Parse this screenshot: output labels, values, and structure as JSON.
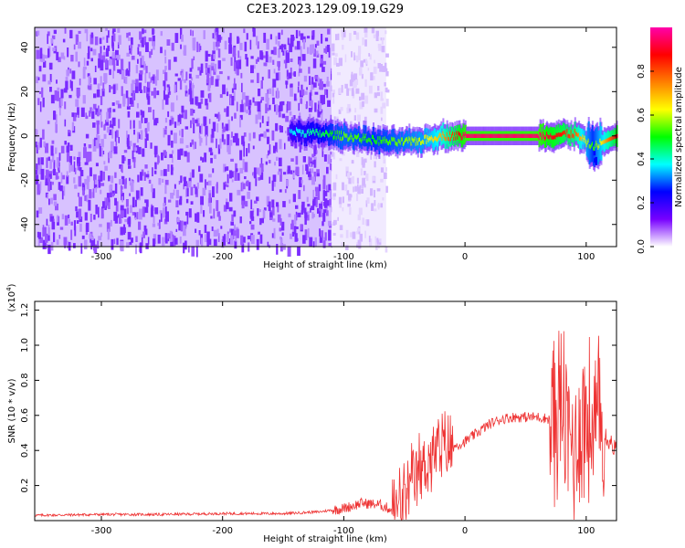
{
  "figure": {
    "title": "C2E3.2023.129.09.19.G29"
  },
  "chart_data": [
    {
      "type": "heatmap",
      "title": "C2E3.2023.129.09.19.G29",
      "xlabel": "Height of straight line (km)",
      "ylabel": "Frequency (Hz)",
      "xlim": [
        -355,
        125
      ],
      "ylim": [
        -50,
        49
      ],
      "x_ticks": [
        -300,
        -200,
        -100,
        0,
        100
      ],
      "y_ticks": [
        -40,
        -20,
        0,
        20,
        40
      ],
      "grid": false,
      "colorbar": {
        "label": "Normalized spectral amplitude",
        "range": [
          0.0,
          1.0
        ],
        "ticks": [
          0.0,
          0.2,
          0.4,
          0.6,
          0.8
        ],
        "colormap": [
          "#ffffff",
          "#7700ff",
          "#0000ff",
          "#00ffff",
          "#00ff00",
          "#ffff00",
          "#ff7f00",
          "#ff0000",
          "#ff00aa"
        ]
      },
      "regions": [
        {
          "name": "noise",
          "x_range": [
            -355,
            -110
          ],
          "freq_range": [
            -50,
            49
          ],
          "amplitude": 0.1
        },
        {
          "name": "sparse noise",
          "x_range": [
            -110,
            -65
          ],
          "freq_range": [
            -50,
            49
          ],
          "amplitude": 0.03
        },
        {
          "name": "signal trace",
          "x_range": [
            -145,
            125
          ],
          "freq": 0,
          "amplitude": 0.9
        }
      ],
      "trace_points": [
        {
          "x": -145,
          "y": 2,
          "amp": 0.35
        },
        {
          "x": -120,
          "y": 1,
          "amp": 0.45
        },
        {
          "x": -100,
          "y": 0,
          "amp": 0.55
        },
        {
          "x": -75,
          "y": -2,
          "amp": 0.5
        },
        {
          "x": -55,
          "y": -3,
          "amp": 0.55
        },
        {
          "x": -35,
          "y": -2,
          "amp": 0.6
        },
        {
          "x": -20,
          "y": 0,
          "amp": 0.7
        },
        {
          "x": 0,
          "y": 0,
          "amp": 0.95
        },
        {
          "x": 60,
          "y": 0,
          "amp": 0.95
        },
        {
          "x": 90,
          "y": 1,
          "amp": 0.8
        },
        {
          "x": 105,
          "y": -5,
          "amp": 0.5
        },
        {
          "x": 125,
          "y": 0,
          "amp": 0.9
        }
      ]
    },
    {
      "type": "line",
      "xlabel": "Height of straight line (km)",
      "ylabel": "SNR (10 * v/v)",
      "y_multiplier": "(x10",
      "y_multiplier_exp": "4",
      "y_multiplier_close": ")",
      "xlim": [
        -355,
        125
      ],
      "ylim": [
        0.0,
        1.25
      ],
      "x_ticks": [
        -300,
        -200,
        -100,
        0,
        100
      ],
      "y_ticks": [
        0.2,
        0.4,
        0.6,
        0.8,
        1.0,
        1.2
      ],
      "grid": false,
      "color": "#ee3333",
      "series": [
        {
          "x": [
            -355,
            -300,
            -250,
            -200,
            -150,
            -120,
            -100,
            -85,
            -70,
            -60,
            -50,
            -40,
            -30,
            -20,
            -10,
            0,
            10,
            20,
            30,
            40,
            50,
            60,
            70,
            75,
            80,
            85,
            90,
            95,
            100,
            105,
            110,
            115,
            120,
            125
          ],
          "y": [
            0.03,
            0.035,
            0.035,
            0.04,
            0.04,
            0.05,
            0.07,
            0.1,
            0.09,
            0.06,
            0.1,
            0.25,
            0.35,
            0.4,
            0.42,
            0.45,
            0.5,
            0.55,
            0.58,
            0.59,
            0.59,
            0.59,
            0.58,
            0.6,
            0.65,
            0.5,
            0.4,
            0.55,
            0.6,
            0.5,
            0.55,
            0.5,
            0.45,
            0.4
          ]
        }
      ]
    }
  ]
}
